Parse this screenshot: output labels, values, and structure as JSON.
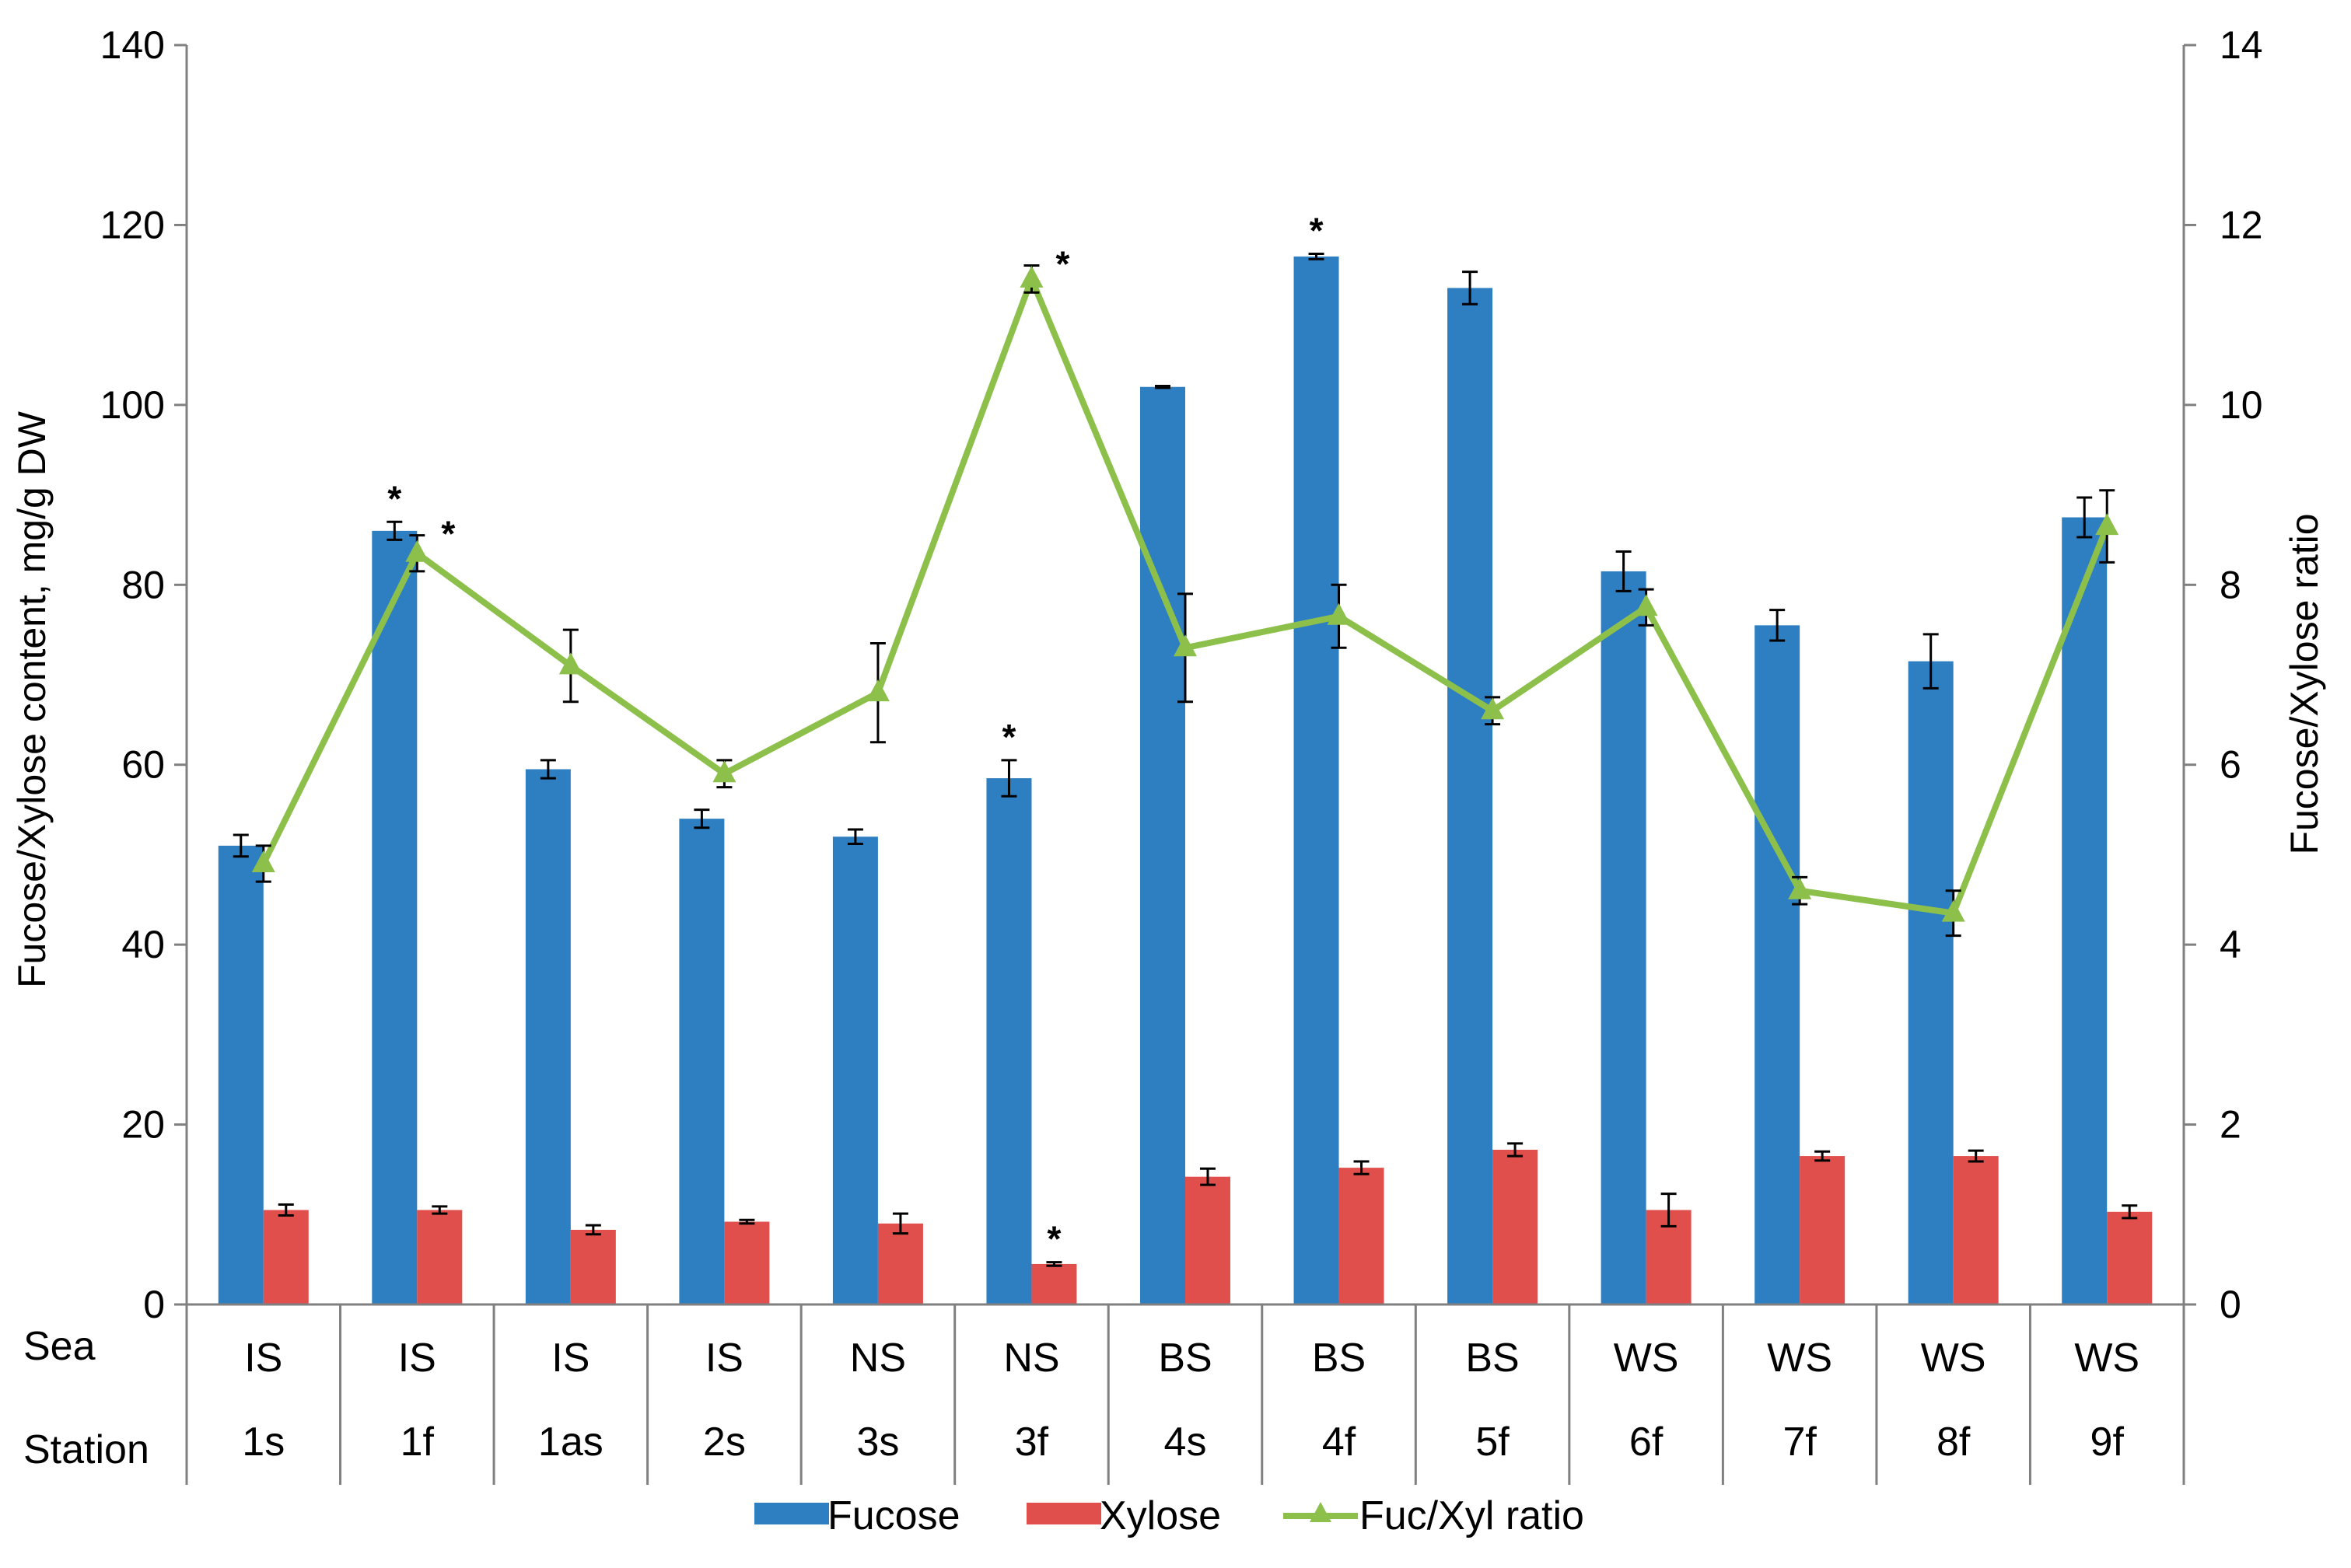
{
  "chart_data": {
    "type": "bar+line",
    "ylabel": "Fucose/Xylose content, mg/g DW",
    "y2label": "Fucose/Xylose ratio",
    "ylim": [
      0,
      140
    ],
    "y2lim": [
      0,
      14
    ],
    "yticks": [
      "0",
      "20",
      "40",
      "60",
      "80",
      "100",
      "120",
      "140"
    ],
    "y2ticks": [
      "0",
      "2",
      "4",
      "6",
      "8",
      "10",
      "12",
      "14"
    ],
    "row_labels": {
      "sea": "Sea",
      "station": "Station"
    },
    "seas": [
      "IS",
      "IS",
      "IS",
      "IS",
      "NS",
      "NS",
      "BS",
      "BS",
      "BS",
      "WS",
      "WS",
      "WS",
      "WS"
    ],
    "stations": [
      "1s",
      "1f",
      "1as",
      "2s",
      "3s",
      "3f",
      "4s",
      "4f",
      "5f",
      "6f",
      "7f",
      "8f",
      "9f"
    ],
    "series": [
      {
        "name": "Fucose",
        "type": "bar",
        "axis": "left",
        "color": "#2E7EC2",
        "values": [
          51,
          86,
          59.5,
          54,
          52,
          58.5,
          102,
          116.5,
          113,
          81.5,
          75.5,
          71.5,
          87.5
        ],
        "errors": [
          1.2,
          1,
          1,
          1,
          0.8,
          2,
          0.1,
          0.3,
          1.8,
          2.2,
          1.7,
          3,
          2.2
        ],
        "significance": [
          false,
          true,
          false,
          false,
          false,
          true,
          false,
          true,
          false,
          false,
          false,
          false,
          false
        ]
      },
      {
        "name": "Xylose",
        "type": "bar",
        "axis": "left",
        "color": "#E04F4B",
        "values": [
          10.5,
          10.5,
          8.3,
          9.2,
          9,
          4.5,
          14.2,
          15.2,
          17.2,
          10.5,
          16.5,
          16.5,
          10.3
        ],
        "errors": [
          0.6,
          0.4,
          0.5,
          0.2,
          1.1,
          0.2,
          0.9,
          0.7,
          0.7,
          1.8,
          0.5,
          0.6,
          0.7
        ],
        "significance": [
          false,
          false,
          false,
          false,
          false,
          true,
          false,
          false,
          false,
          false,
          false,
          false,
          false
        ]
      },
      {
        "name": "Fuc/Xyl ratio",
        "type": "line",
        "axis": "right",
        "color": "#8DC04A",
        "values": [
          4.9,
          8.35,
          7.1,
          5.9,
          6.8,
          11.4,
          7.3,
          7.65,
          6.6,
          7.75,
          4.6,
          4.35,
          8.65
        ],
        "errors": [
          0.2,
          0.2,
          0.4,
          0.15,
          0.55,
          0.15,
          0.6,
          0.35,
          0.15,
          0.2,
          0.15,
          0.25,
          0.4
        ],
        "significance": [
          false,
          true,
          false,
          false,
          false,
          true,
          false,
          false,
          false,
          false,
          false,
          false,
          false
        ]
      }
    ],
    "legend": [
      "Fucose",
      "Xylose",
      "Fuc/Xyl ratio"
    ],
    "legend_position": "bottom",
    "significance_marker": "*"
  }
}
